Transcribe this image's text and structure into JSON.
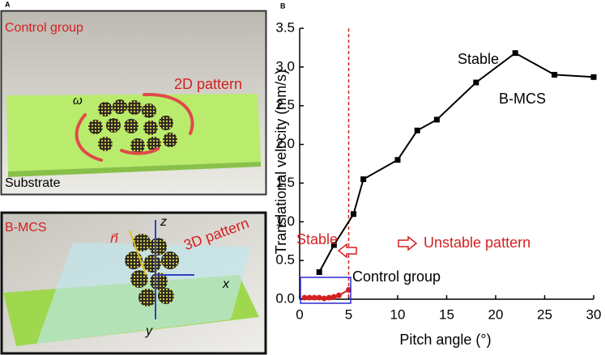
{
  "panels": {
    "a": {
      "label": "A",
      "title": "Control group",
      "pattern": "2D pattern",
      "omega": "ω",
      "substrate": "Substrate"
    },
    "b": {
      "title": "B-MCS",
      "pattern": "3D pattern",
      "normal": "n⃗",
      "z": "z",
      "x": "x",
      "y": "y"
    }
  },
  "chart_data": {
    "type": "line",
    "panel_label": "B",
    "xlabel": "Pitch angle (°)",
    "ylabel": "Translational velocity (mm/s)",
    "xlim": [
      0,
      30
    ],
    "xticks": [
      0,
      5,
      10,
      15,
      20,
      25,
      30
    ],
    "ylim": [
      0,
      3.5
    ],
    "yticks": [
      {
        "value": 0,
        "label": "0.0"
      },
      0.5,
      {
        "value": 1,
        "label": "1.0"
      },
      1.5,
      {
        "value": 2,
        "label": "2.0"
      },
      2.5,
      {
        "value": 3,
        "label": "3.0"
      },
      3.5
    ],
    "vline": 5,
    "series": [
      {
        "name": "B-MCS",
        "color": "#000000",
        "marker": "square",
        "x": [
          2,
          3.5,
          5.5,
          6.5,
          10,
          12,
          14,
          18,
          22,
          26,
          30
        ],
        "values": [
          0.35,
          0.7,
          1.1,
          1.55,
          1.8,
          2.18,
          2.32,
          2.8,
          3.18,
          2.9,
          2.87
        ]
      },
      {
        "name": "Control group",
        "color": "#d42020",
        "marker": "circle",
        "x": [
          0.5,
          1,
          1.5,
          2,
          2.5,
          3,
          3.5,
          4,
          5
        ],
        "values": [
          0.02,
          0.02,
          0.02,
          0.02,
          0.01,
          0.02,
          0.03,
          0.05,
          0.12
        ]
      }
    ],
    "annotations": [
      "Stable",
      "Stable",
      "Unstable pattern"
    ]
  }
}
